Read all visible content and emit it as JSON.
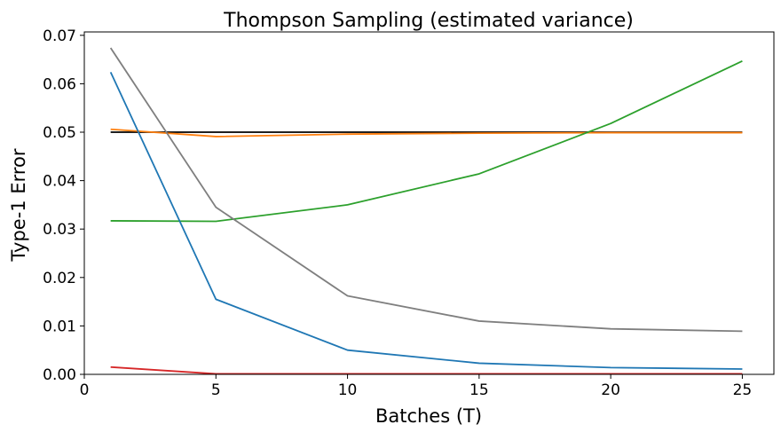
{
  "chart_data": {
    "type": "line",
    "title": "Thompson Sampling (estimated variance)",
    "xlabel": "Batches (T)",
    "ylabel": "Type-1 Error",
    "xlim": [
      0,
      26.2
    ],
    "ylim": [
      0,
      0.0707
    ],
    "xticks": [
      0,
      5,
      10,
      15,
      20,
      25
    ],
    "xtick_labels": [
      "0",
      "5",
      "10",
      "15",
      "20",
      "25"
    ],
    "yticks": [
      0.0,
      0.01,
      0.02,
      0.03,
      0.04,
      0.05,
      0.06,
      0.07
    ],
    "ytick_labels": [
      "0.00",
      "0.01",
      "0.02",
      "0.03",
      "0.04",
      "0.05",
      "0.06",
      "0.07"
    ],
    "grid": false,
    "x": [
      1,
      5,
      10,
      15,
      20,
      25
    ],
    "series": [
      {
        "color": "#000000",
        "values": [
          0.05,
          0.05,
          0.05,
          0.05,
          0.05,
          0.05
        ]
      },
      {
        "color": "#ff7f0e",
        "values": [
          0.0506,
          0.0491,
          0.0496,
          0.0498,
          0.0499,
          0.0499
        ]
      },
      {
        "color": "#2ca02c",
        "values": [
          0.0317,
          0.0316,
          0.035,
          0.0414,
          0.0518,
          0.0647
        ]
      },
      {
        "color": "#7f7f7f",
        "values": [
          0.0674,
          0.0345,
          0.0162,
          0.011,
          0.0094,
          0.0089
        ]
      },
      {
        "color": "#1f77b4",
        "values": [
          0.0624,
          0.0155,
          0.005,
          0.0023,
          0.0014,
          0.0011
        ]
      },
      {
        "color": "#d62728",
        "values": [
          0.0015,
          0.0001,
          0.0001,
          0.0001,
          0.0001,
          0.0001
        ]
      }
    ]
  }
}
